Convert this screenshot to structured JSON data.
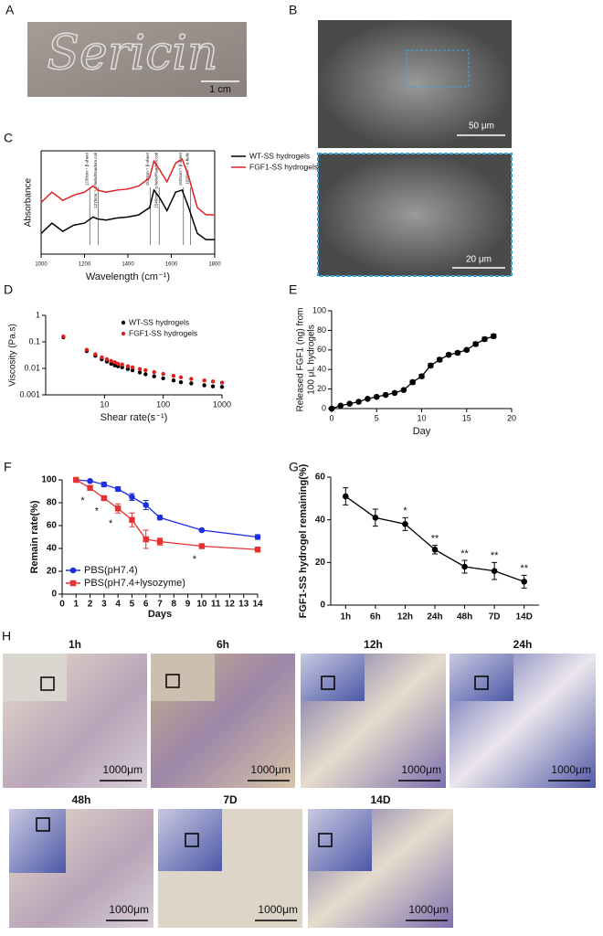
{
  "panel_labels": [
    "A",
    "B",
    "C",
    "D",
    "E",
    "F",
    "G",
    "H"
  ],
  "panel_a": {
    "image_text": "Sericin",
    "scale_bar": "1 cm"
  },
  "panel_b": {
    "scale_bars": [
      "50 μm",
      "20 μm"
    ]
  },
  "chart_data": [
    {
      "type": "line",
      "xlabel": "Wavelength (cm⁻¹)",
      "ylabel": "Absorbance",
      "frame": true,
      "legend": "right",
      "x": [
        1000,
        1050,
        1100,
        1150,
        1200,
        1240,
        1260,
        1300,
        1350,
        1400,
        1450,
        1500,
        1520,
        1545,
        1580,
        1620,
        1650,
        1680,
        1720,
        1760,
        1800
      ],
      "xlim": [
        1000,
        1800
      ],
      "xticks": [
        1000,
        1200,
        1400,
        1600,
        1800
      ],
      "ylim": [
        0,
        1
      ],
      "annotations": [
        "1238cm⁻¹ β-sheet",
        "1270cm⁻¹ α-helix/Random coil",
        "1520cm⁻¹ β-sheet",
        "1540cm⁻¹ α-helix/Random coil",
        "1625cm⁻¹ β-sheet",
        "1650cm⁻¹ α-helix"
      ],
      "series": [
        {
          "name": "WT-SS hydrogels",
          "color": "#000000",
          "values": [
            0.2,
            0.3,
            0.22,
            0.28,
            0.3,
            0.36,
            0.34,
            0.33,
            0.35,
            0.36,
            0.38,
            0.45,
            0.62,
            0.55,
            0.42,
            0.6,
            0.62,
            0.45,
            0.2,
            0.14,
            0.14
          ]
        },
        {
          "name": "FGF1-SS hydrogels",
          "color": "#e02020",
          "values": [
            0.5,
            0.6,
            0.52,
            0.57,
            0.6,
            0.66,
            0.62,
            0.6,
            0.62,
            0.63,
            0.66,
            0.74,
            0.9,
            0.82,
            0.7,
            0.88,
            0.92,
            0.75,
            0.45,
            0.38,
            0.38
          ]
        }
      ]
    },
    {
      "type": "scatter",
      "xlabel": "Shear rate(s⁻¹)",
      "ylabel": "Viscosity  (Pa.s)",
      "log_x": true,
      "log_y": true,
      "legend": "upper right",
      "x": [
        2,
        5,
        7,
        9,
        11,
        13,
        15,
        17,
        20,
        25,
        30,
        40,
        50,
        70,
        100,
        150,
        200,
        300,
        500,
        700,
        1000
      ],
      "xlim": [
        1,
        1000
      ],
      "xticks": [
        10,
        100,
        1000
      ],
      "ylim": [
        0.001,
        1
      ],
      "yticks": [
        0.001,
        0.01,
        0.1,
        1
      ],
      "series": [
        {
          "name": "WT-SS hydrogels",
          "color": "#000000",
          "values": [
            0.15,
            0.045,
            0.03,
            0.022,
            0.018,
            0.015,
            0.013,
            0.012,
            0.011,
            0.0095,
            0.0085,
            0.007,
            0.006,
            0.005,
            0.0042,
            0.0035,
            0.003,
            0.0027,
            0.0023,
            0.0021,
            0.002
          ]
        },
        {
          "name": "FGF1-SS hydrogels",
          "color": "#e02020",
          "values": [
            0.16,
            0.05,
            0.034,
            0.026,
            0.022,
            0.019,
            0.017,
            0.015,
            0.014,
            0.012,
            0.011,
            0.0095,
            0.0085,
            0.0072,
            0.0062,
            0.0052,
            0.0046,
            0.004,
            0.0035,
            0.0032,
            0.0029
          ]
        }
      ]
    },
    {
      "type": "line",
      "xlabel": "Day",
      "ylabel": [
        "Released FGF1 (ng) from",
        "100 μL hydrogels"
      ],
      "x": [
        0,
        1,
        2,
        3,
        4,
        5,
        6,
        7,
        8,
        9,
        10,
        11,
        12,
        13,
        14,
        15,
        16,
        17,
        18
      ],
      "xlim": [
        0,
        20
      ],
      "xticks": [
        0,
        5,
        10,
        15,
        20
      ],
      "ylim": [
        0,
        100
      ],
      "yticks": [
        0,
        20,
        40,
        60,
        80,
        100
      ],
      "series": [
        {
          "color": "#000000",
          "marker": "circle",
          "values": [
            0,
            3,
            5,
            7,
            10,
            12,
            14,
            16,
            19,
            27,
            33,
            44,
            50,
            55,
            57,
            60,
            66,
            71,
            74
          ],
          "errors": [
            0.5,
            0.5,
            0.5,
            0.5,
            0.5,
            0.5,
            0.5,
            0.5,
            1,
            2,
            2,
            2,
            2,
            1.5,
            1.5,
            1.5,
            2,
            2,
            2
          ]
        }
      ]
    },
    {
      "type": "line",
      "xlabel": "Days",
      "ylabel": "Remain rate(%)",
      "legend": "lower left",
      "x": [
        1,
        2,
        3,
        4,
        5,
        6,
        7,
        10,
        14
      ],
      "xlim": [
        0,
        14
      ],
      "xticks": [
        0,
        1,
        2,
        3,
        4,
        5,
        6,
        7,
        8,
        9,
        10,
        11,
        12,
        13,
        14
      ],
      "ylim": [
        0,
        100
      ],
      "yticks": [
        0,
        20,
        40,
        60,
        80,
        100
      ],
      "significance": [
        null,
        "*",
        "*",
        "*",
        null,
        null,
        null,
        "*",
        null
      ],
      "series": [
        {
          "name": "PBS(pH7.4)",
          "color": "#1f2fe0",
          "marker": "circle",
          "values": [
            100,
            99,
            96,
            92,
            85,
            78,
            67,
            56,
            50
          ],
          "errors": [
            1,
            1,
            2,
            2,
            3,
            4,
            2,
            1,
            2
          ]
        },
        {
          "name": "PBS(pH7.4+lysozyme)",
          "color": "#e83030",
          "marker": "square",
          "values": [
            100,
            93,
            84,
            75,
            65,
            48,
            46,
            42,
            39
          ],
          "errors": [
            1,
            2,
            2,
            4,
            6,
            8,
            3,
            2,
            2
          ]
        }
      ]
    },
    {
      "type": "line",
      "ylabel": "FGF1-SS hydrogel remaining(%)",
      "categories": [
        "1h",
        "6h",
        "12h",
        "24h",
        "48h",
        "7D",
        "14D"
      ],
      "ylim": [
        0,
        60
      ],
      "yticks": [
        0,
        20,
        40,
        60
      ],
      "significance": [
        null,
        null,
        "*",
        "**",
        "**",
        "**",
        "**"
      ],
      "series": [
        {
          "color": "#000000",
          "marker": "circle",
          "values": [
            51,
            41,
            38,
            26,
            18,
            16,
            11
          ],
          "errors": [
            4,
            4,
            3,
            2,
            3,
            4,
            3
          ]
        }
      ]
    }
  ],
  "panel_h": {
    "timepoints": [
      "1h",
      "6h",
      "12h",
      "24h",
      "48h",
      "7D",
      "14D"
    ],
    "scale_bar": "1000μm"
  }
}
